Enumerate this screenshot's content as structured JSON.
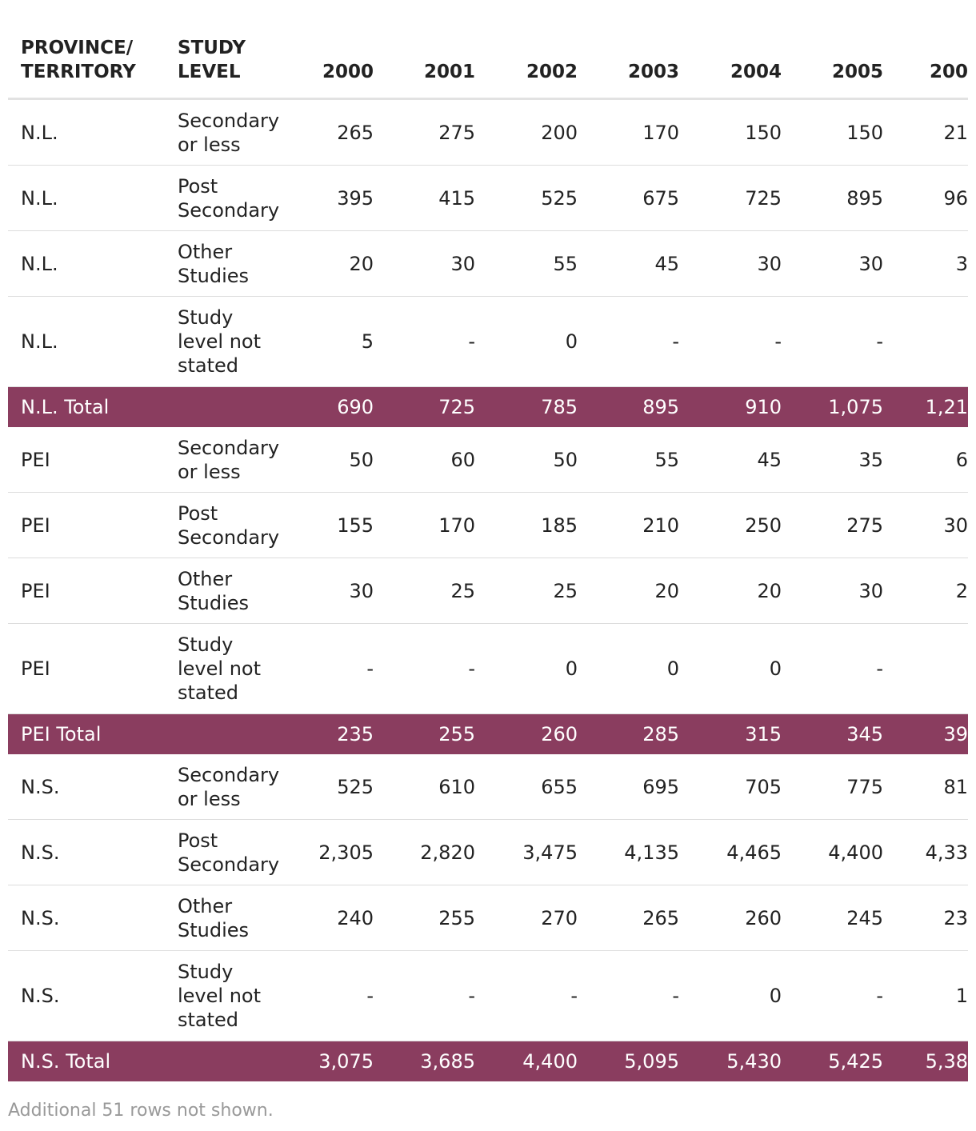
{
  "table": {
    "columns": [
      "PROVINCE/ TERRITORY",
      "STUDY LEVEL",
      "2000",
      "2001",
      "2002",
      "2003",
      "2004",
      "2005",
      "200"
    ],
    "rows": [
      {
        "province": "N.L.",
        "level": "Secondary or less",
        "values": [
          "265",
          "275",
          "200",
          "170",
          "150",
          "150",
          "21"
        ]
      },
      {
        "province": "N.L.",
        "level": "Post Secondary",
        "values": [
          "395",
          "415",
          "525",
          "675",
          "725",
          "895",
          "96"
        ]
      },
      {
        "province": "N.L.",
        "level": "Other Studies",
        "values": [
          "20",
          "30",
          "55",
          "45",
          "30",
          "30",
          "3"
        ]
      },
      {
        "province": "N.L.",
        "level": "Study level not stated",
        "values": [
          "5",
          "-",
          "0",
          "-",
          "-",
          "-",
          null
        ]
      },
      {
        "province": "N.L. Total",
        "values": [
          "690",
          "725",
          "785",
          "895",
          "910",
          "1,075",
          "1,21"
        ]
      },
      {
        "province": "PEI",
        "level": "Secondary or less",
        "values": [
          "50",
          "60",
          "50",
          "55",
          "45",
          "35",
          "6"
        ]
      },
      {
        "province": "PEI",
        "level": "Post Secondary",
        "values": [
          "155",
          "170",
          "185",
          "210",
          "250",
          "275",
          "30"
        ]
      },
      {
        "province": "PEI",
        "level": "Other Studies",
        "values": [
          "30",
          "25",
          "25",
          "20",
          "20",
          "30",
          "2"
        ]
      },
      {
        "province": "PEI",
        "level": "Study level not stated",
        "values": [
          "-",
          "-",
          "0",
          "0",
          "0",
          "-",
          null
        ]
      },
      {
        "province": "PEI Total",
        "values": [
          "235",
          "255",
          "260",
          "285",
          "315",
          "345",
          "39"
        ]
      },
      {
        "province": "N.S.",
        "level": "Secondary or less",
        "values": [
          "525",
          "610",
          "655",
          "695",
          "705",
          "775",
          "81"
        ]
      },
      {
        "province": "N.S.",
        "level": "Post Secondary",
        "values": [
          "2,305",
          "2,820",
          "3,475",
          "4,135",
          "4,465",
          "4,400",
          "4,33"
        ]
      },
      {
        "province": "N.S.",
        "level": "Other Studies",
        "values": [
          "240",
          "255",
          "270",
          "265",
          "260",
          "245",
          "23"
        ]
      },
      {
        "province": "N.S.",
        "level": "Study level not stated",
        "values": [
          "-",
          "-",
          "-",
          "-",
          "0",
          "-",
          "1"
        ]
      },
      {
        "province": "N.S. Total",
        "values": [
          "3,075",
          "3,685",
          "4,400",
          "5,095",
          "5,430",
          "5,425",
          "5,38"
        ]
      }
    ]
  },
  "footer": "Additional 51 rows not shown."
}
